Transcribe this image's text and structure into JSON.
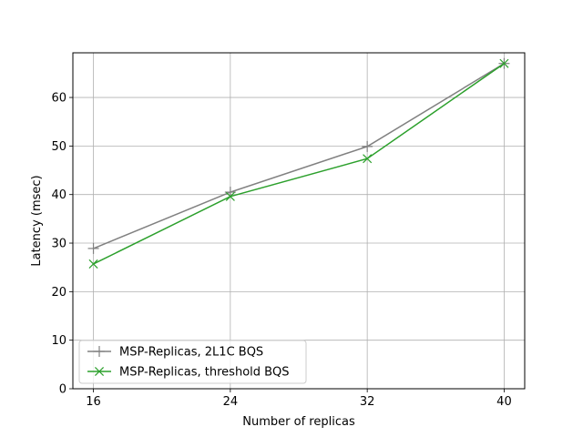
{
  "chart_data": {
    "type": "line",
    "title": "",
    "xlabel": "Number of replicas",
    "ylabel": "Latency (msec)",
    "x": [
      16,
      24,
      32,
      40
    ],
    "x_tick_labels": [
      "16",
      "24",
      "32",
      "40"
    ],
    "y_tick_labels": [
      "0",
      "10",
      "20",
      "30",
      "40",
      "50",
      "60"
    ],
    "y_ticks": [
      0,
      10,
      20,
      30,
      40,
      50,
      60
    ],
    "xlim": [
      14.8,
      41.2
    ],
    "ylim": [
      0,
      69.2
    ],
    "grid": true,
    "legend_position": "lower-left",
    "series": [
      {
        "name": "MSP-Replicas, 2L1C BQS",
        "values": [
          28.9,
          40.5,
          49.9,
          67.0
        ],
        "color": "#808080",
        "marker": "plus"
      },
      {
        "name": "MSP-Replicas, threshold BQS",
        "values": [
          25.7,
          39.6,
          47.4,
          67.0
        ],
        "color": "#2ca02c",
        "marker": "x"
      }
    ]
  }
}
